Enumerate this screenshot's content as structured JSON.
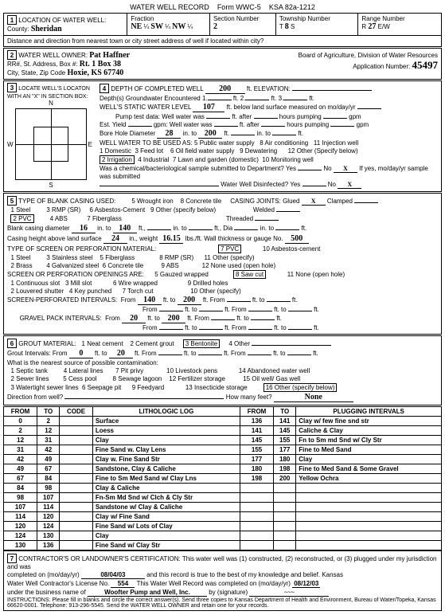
{
  "form": {
    "title": "WATER WELL RECORD",
    "form_no": "Form WWC-5",
    "ksa": "KSA 82a-1212"
  },
  "loc": {
    "county_label": "County:",
    "county": "Sheridan",
    "fraction_label": "Fraction",
    "f1": "NE",
    "f2": "SW",
    "f3": "NW",
    "section_label": "Section Number",
    "section": "2",
    "township_label": "Township Number",
    "township": "8",
    "range_label": "Range Number",
    "range": "27",
    "dist_label": "Distance and direction from nearest town or city street address of well if located within city?"
  },
  "owner": {
    "label": "WATER WELL OWNER:",
    "name": "Pat Haffner",
    "addr_label": "RR#, St. Address, Box #:",
    "addr": "Rt. 1 Box 38",
    "city_label": "City, State, Zip Code",
    "city": "Hoxie, KS 67740",
    "board": "Board of Agriculture, Division of Water Resources",
    "appno_label": "Application Number:",
    "appno": "45497"
  },
  "locate": {
    "label": "LOCATE WELL'S LOCATON WITH AN \"X\" IN SECTION BOX:",
    "n": "N",
    "s": "S",
    "e": "E",
    "w": "W"
  },
  "depth": {
    "label": "DEPTH OF COMPLETED WELL",
    "val": "200",
    "unit": "ft. ELEVATION:",
    "gw_label": "Depth(s) Groundwater Encountered",
    "gw1": "1.",
    "gw2": "2.",
    "gw3": "3.",
    "swl_label": "WELL'S STATIC WATER LEVEL",
    "swl": "107",
    "swl_unit": "ft. below land surface measured on mo/day/yr",
    "pump_label": "Pump test data:",
    "ww_was": "Well water was",
    "ft_after": "ft. after",
    "hours": "hours pumping",
    "gpm": "gpm",
    "est_label": "Est. Yield",
    "bore_label": "Bore Hole Diameter",
    "bore1": "28",
    "bore_to": "200",
    "use_label": "WELL WATER TO BE USED AS:",
    "use1": "1 Domestic",
    "use2": "2 Irrigation",
    "use3": "3 Feed lot",
    "use4": "4 Industrial",
    "use5": "5 Public water supply",
    "use6": "6 Oil field water supply",
    "use7": "7 Lawn and garden (domestic)",
    "use8": "8 Air conditioning",
    "use9": "9 Dewatering",
    "use10": "10 Monitoring well",
    "use11": "11 Injection well",
    "use12": "12 Other (Specify below)",
    "chem_label": "Was a chemical/bacteriological sample submitted to Department? Yes",
    "chem_no": "No",
    "chem_x": "X",
    "chem_if": "If yes, mo/day/yr sample was submitted",
    "disinf": "Water Well Disinfected? Yes",
    "disinf_no": "No",
    "disinf_x": "X"
  },
  "casing": {
    "label": "TYPE OF BLANK CASING USED:",
    "o1": "1 Steel",
    "o2": "2 PVC",
    "o3": "3 RMP (SR)",
    "o4": "4 ABS",
    "o5": "5 Wrought iron",
    "o6": "6 Asbestos-Cement",
    "o7": "7 Fiberglass",
    "o8": "8 Concrete tile",
    "o9": "9 Other (specify below)",
    "joints_label": "CASING JOINTS: Glued",
    "glued_x": "X",
    "clamped": "Clamped",
    "welded": "Welded",
    "threaded": "Threaded",
    "diam_label": "Blank casing diameter",
    "diam": "16",
    "diam_to": "140",
    "height_label": "Casing height above land surface",
    "height": "24",
    "weight": "16.15",
    "thick_label": "Wall thickness or gauge No.",
    "thick": "500"
  },
  "screen": {
    "label": "TYPE OF SCREEN OR PERFORATION MATERIAL:",
    "o1": "1 Steel",
    "o2": "2 Brass",
    "o3": "3 Stainless steel",
    "o4": "4 Galvanized steel",
    "o5": "5 Fiberglass",
    "o6": "6 Concrete tile",
    "o7": "7 PVC",
    "o8": "8 RMP (SR)",
    "o9": "9 ABS",
    "o10": "10 Asbestos-cement",
    "o11": "11 Other (specify)",
    "o12": "12 None used (open hole)",
    "open_label": "SCREEN OR PERFORATION OPENINGS ARE:",
    "p1": "1 Continuous slot",
    "p2": "2 Louvered shutter",
    "p3": "3 Mill slot",
    "p4": "4 Key punched",
    "p5": "5 Gauzed wrapped",
    "p6": "6 Wire wrapped",
    "p7": "7 Torch cut",
    "p8": "8 Saw cut",
    "p9": "9 Drilled holes",
    "p10": "10 Other (specify)",
    "p11": "11 None (open hole)",
    "perf_label": "SCREEN-PERFORATED INTERVALS:",
    "perf_from": "140",
    "perf_to": "200",
    "gravel_label": "GRAVEL PACK INTERVALS:",
    "gravel_from": "20",
    "gravel_to": "200"
  },
  "grout": {
    "label": "GROUT MATERIAL:",
    "o1": "1 Neat cement",
    "o2": "2 Cement grout",
    "o3": "3 Bentonite",
    "o4": "4 Other",
    "int_label": "Grout Intervals: From",
    "int_from": "0",
    "int_to": "20",
    "contam_label": "What is the nearest source of possible contamination:",
    "c1": "1 Septic tank",
    "c2": "2 Sewer lines",
    "c3": "3 Watertight sewer lines",
    "c4": "4 Lateral lines",
    "c5": "5 Cess pool",
    "c6": "6 Seepage pit",
    "c7": "7 Pit privy",
    "c8": "8 Sewage lagoon",
    "c9": "9 Feedyard",
    "c10": "10 Livestock pens",
    "c11": "11 Fuel storage",
    "c12": "12 Fertilizer storage",
    "c13": "13 Insecticide storage",
    "c14": "14 Abandoned water well",
    "c15": "15 Oil well/ Gas well",
    "c16": "16 Other (specify below)",
    "none": "None",
    "dir_label": "Direction from well?",
    "feet_label": "How many feet?"
  },
  "log": {
    "h_from": "FROM",
    "h_to": "TO",
    "h_code": "CODE",
    "h_lith": "LITHOLOGIC LOG",
    "h_plug": "PLUGGING INTERVALS",
    "rows": [
      {
        "f": "0",
        "t": "2",
        "l": "Surface",
        "pf": "136",
        "pt": "141",
        "p": "Clay w/ few fine snd str"
      },
      {
        "f": "2",
        "t": "12",
        "l": "Loess",
        "pf": "141",
        "pt": "145",
        "p": "Caliche & Clay"
      },
      {
        "f": "12",
        "t": "31",
        "l": "Clay",
        "pf": "145",
        "pt": "155",
        "p": "Fn to Sm md Snd w/ Cly Str"
      },
      {
        "f": "31",
        "t": "42",
        "l": "Fine Sand w. Clay Lens",
        "pf": "155",
        "pt": "177",
        "p": "Fine to Med Sand"
      },
      {
        "f": "42",
        "t": "49",
        "l": "Clay w. Fine Sand Str",
        "pf": "177",
        "pt": "180",
        "p": "Clay"
      },
      {
        "f": "49",
        "t": "67",
        "l": "Sandstone, Clay & Caliche",
        "pf": "180",
        "pt": "198",
        "p": "Fine to Med Sand & Some Gravel"
      },
      {
        "f": "67",
        "t": "84",
        "l": "Fine to Sm Med Sand w/ Clay Lns",
        "pf": "198",
        "pt": "200",
        "p": "Yellow Ochra"
      },
      {
        "f": "84",
        "t": "98",
        "l": "Clay & Caliche",
        "pf": "",
        "pt": "",
        "p": ""
      },
      {
        "f": "98",
        "t": "107",
        "l": "Fn-Sm Md Snd w/ Clch & Cly Str",
        "pf": "",
        "pt": "",
        "p": ""
      },
      {
        "f": "107",
        "t": "114",
        "l": "Sandstone w/ Clay & Caliche",
        "pf": "",
        "pt": "",
        "p": ""
      },
      {
        "f": "114",
        "t": "120",
        "l": "Clay w/ Fine Sand",
        "pf": "",
        "pt": "",
        "p": ""
      },
      {
        "f": "120",
        "t": "124",
        "l": "Fine Sand w/ Lots of Clay",
        "pf": "",
        "pt": "",
        "p": ""
      },
      {
        "f": "124",
        "t": "130",
        "l": "Clay",
        "pf": "",
        "pt": "",
        "p": ""
      },
      {
        "f": "130",
        "t": "136",
        "l": "Fine Sand w/ Clay Str",
        "pf": "",
        "pt": "",
        "p": ""
      }
    ]
  },
  "cert": {
    "label": "CONTRACTOR'S OR LANDOWNER'S CERTIFICATION: This water well was (1) constructed, (2) reconstructed, or (3) plugged under my jurisdiction and was",
    "completed_label": "completed on (mo/day/yr)",
    "completed": "08/04/03",
    "true_label": "and this record is true to the best of my knowledge and belief. Kansas",
    "lic_label": "Water Well Contractor's License No.",
    "lic": "554",
    "rec_label": "This Water Well Record was completed on (mo/day/yr)",
    "rec_date": "08/12/03",
    "bus_label": "under the business name of",
    "bus": "Woofter Pump and Well, Inc.",
    "sig_label": "by (signature)",
    "instr": "INSTRUCTIONS: Please fill in blanks and circle the correct answer(s). Send three copies to Kansas Department of Health and Environment, Bureau of Water/Topeka, Kansas 66620-0001. Telephone: 913-296-5545. Send the WATER WELL OWNER and retain one for your records."
  }
}
